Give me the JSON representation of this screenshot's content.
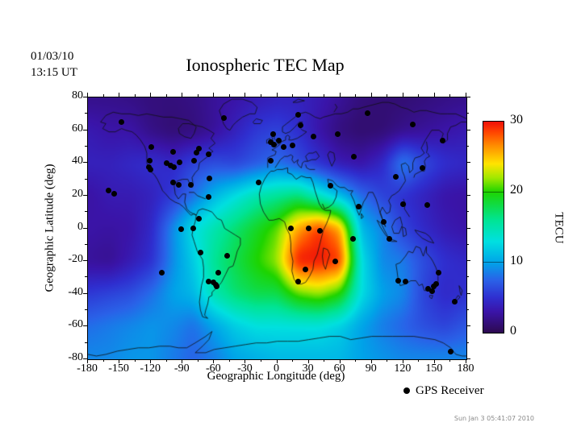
{
  "header": {
    "date_line1": "01/03/10",
    "date_line2": "13:15 UT",
    "title": "Ionospheric TEC Map"
  },
  "axes": {
    "x_label": "Geographic Longitude (deg)",
    "y_label": "Geographic Latitude (deg)",
    "x_ticks": [
      -180,
      -150,
      -120,
      -90,
      -60,
      -30,
      0,
      30,
      60,
      90,
      120,
      150,
      180
    ],
    "y_ticks": [
      80,
      60,
      40,
      20,
      0,
      -20,
      -40,
      -60,
      -80
    ]
  },
  "colorbar": {
    "label": "TECU",
    "ticks": [
      30,
      20,
      10,
      0
    ],
    "value_range": [
      0,
      30
    ],
    "stops": [
      {
        "v": 0,
        "c": "#2d0a50"
      },
      {
        "v": 3,
        "c": "#3a14a8"
      },
      {
        "v": 5,
        "c": "#2f2fd0"
      },
      {
        "v": 7.5,
        "c": "#2a62e8"
      },
      {
        "v": 10,
        "c": "#00a4e8"
      },
      {
        "v": 13,
        "c": "#00e0e0"
      },
      {
        "v": 16,
        "c": "#00e494"
      },
      {
        "v": 20,
        "c": "#1ed400"
      },
      {
        "v": 22,
        "c": "#a0e800"
      },
      {
        "v": 24,
        "c": "#ffe400"
      },
      {
        "v": 26.5,
        "c": "#ff9000"
      },
      {
        "v": 28.5,
        "c": "#ff4400"
      },
      {
        "v": 30,
        "c": "#ef1109"
      }
    ]
  },
  "legend": {
    "label": "GPS Receiver"
  },
  "footer": {
    "timestamp": "Sun Jan 3 05:41:07 2010"
  },
  "chart_data": {
    "type": "heatmap",
    "title": "Ionospheric TEC Map",
    "xlabel": "Geographic Longitude (deg)",
    "ylabel": "Geographic Latitude (deg)",
    "xlim": [
      -180,
      180
    ],
    "ylim": [
      -80,
      80
    ],
    "units": "TECU",
    "value_range": [
      0,
      30
    ],
    "grid_lons": [
      -180,
      -160,
      -140,
      -120,
      -100,
      -80,
      -60,
      -40,
      -20,
      0,
      20,
      40,
      60,
      80,
      100,
      120,
      140,
      160,
      180
    ],
    "grid_lats": [
      80,
      60,
      40,
      20,
      0,
      -20,
      -40,
      -60,
      -80
    ],
    "tec_values": [
      [
        2,
        2,
        1.8,
        1.5,
        1.5,
        1.8,
        2.5,
        3,
        3.5,
        4,
        4,
        3.5,
        2.5,
        1.5,
        1.2,
        1.2,
        1.5,
        1.8,
        2
      ],
      [
        3.5,
        3,
        3,
        1.8,
        1.2,
        1.5,
        2.5,
        4,
        5.5,
        6,
        5,
        3,
        1.5,
        1,
        1.2,
        2,
        2.5,
        3,
        3.5
      ],
      [
        4,
        4,
        4.5,
        5,
        4.5,
        6,
        6.5,
        6,
        7,
        8,
        6.5,
        5,
        3.5,
        3,
        4.5,
        9,
        6.5,
        5,
        4.5
      ],
      [
        2.8,
        3.5,
        3.5,
        4,
        5.5,
        8,
        11,
        13,
        15,
        16,
        17,
        14,
        11,
        8,
        6,
        5,
        4,
        3,
        2.8
      ],
      [
        3,
        2.8,
        3,
        4.5,
        9,
        13,
        15,
        17,
        19,
        21,
        26,
        29,
        26,
        11,
        9,
        6,
        4.5,
        3.5,
        3
      ],
      [
        2.5,
        2.2,
        3.5,
        5,
        9,
        12,
        16,
        18,
        20,
        22,
        30,
        30,
        29,
        13,
        9,
        8.5,
        6.5,
        5,
        4.5
      ],
      [
        5.5,
        6,
        6.5,
        8,
        10,
        11,
        15,
        17,
        18,
        18,
        21,
        22,
        20,
        13,
        10,
        9,
        6,
        4.5,
        5
      ],
      [
        8,
        8.5,
        9,
        9.5,
        9,
        8,
        10,
        12,
        13,
        13,
        13,
        13,
        12,
        10,
        8.5,
        7.5,
        6.5,
        6,
        7
      ],
      [
        9,
        9,
        9.5,
        9.5,
        8.5,
        7.5,
        8.5,
        10,
        10.5,
        11,
        11,
        11,
        11,
        10,
        9.5,
        9,
        9,
        9,
        9
      ]
    ],
    "gps_receivers": [
      [
        -147.8,
        65.2
      ],
      [
        -50.9,
        67.5
      ],
      [
        -119.5,
        49.6
      ],
      [
        -99.4,
        47
      ],
      [
        -77.1,
        46.5
      ],
      [
        -74.8,
        48.6
      ],
      [
        -65.6,
        45.5
      ],
      [
        -121,
        41.5
      ],
      [
        -105.3,
        40
      ],
      [
        -92.5,
        40.6
      ],
      [
        -78.7,
        41.6
      ],
      [
        -101.7,
        38.2
      ],
      [
        -97.9,
        37.2
      ],
      [
        -122.3,
        37.4
      ],
      [
        -120.2,
        35.7
      ],
      [
        -99.4,
        28.3
      ],
      [
        -94,
        26.8
      ],
      [
        -82.5,
        26.8
      ],
      [
        -64.8,
        30.5
      ],
      [
        -65.6,
        19.4
      ],
      [
        -160.8,
        22.9
      ],
      [
        -154.7,
        21.4
      ],
      [
        -17.3,
        28.3
      ],
      [
        -91.7,
        -0.3
      ],
      [
        -79.9,
        -0.2
      ],
      [
        -74.8,
        6.1
      ],
      [
        -72.6,
        -15
      ],
      [
        -47.9,
        -16.5
      ],
      [
        -109.4,
        -26.9
      ],
      [
        -55.8,
        -27.3
      ],
      [
        -64.9,
        -32.6
      ],
      [
        -60.5,
        -33.2
      ],
      [
        -58.4,
        -34.6
      ],
      [
        -57.2,
        -35.6
      ],
      [
        19.6,
        69.2
      ],
      [
        22.6,
        62.8
      ],
      [
        -3.5,
        57.8
      ],
      [
        1.9,
        53.9
      ],
      [
        -6.5,
        52.9
      ],
      [
        -2.7,
        51.4
      ],
      [
        5.8,
        49.5
      ],
      [
        14.9,
        50.5
      ],
      [
        -6.5,
        41.6
      ],
      [
        34.9,
        56.2
      ],
      [
        57.2,
        57.4
      ],
      [
        86.3,
        70.6
      ],
      [
        128.6,
        63.3
      ],
      [
        157,
        53.9
      ],
      [
        73.3,
        44
      ],
      [
        50.6,
        26.2
      ],
      [
        77.6,
        13.5
      ],
      [
        138.5,
        36.7
      ],
      [
        113.2,
        31.7
      ],
      [
        13.4,
        0
      ],
      [
        30.3,
        0.2
      ],
      [
        40.3,
        -1.7
      ],
      [
        27.2,
        -24.9
      ],
      [
        19.6,
        -32.3
      ],
      [
        55.6,
        -20.2
      ],
      [
        72.5,
        -6.2
      ],
      [
        101.7,
        3.7
      ],
      [
        106.8,
        -6.2
      ],
      [
        119.8,
        14.8
      ],
      [
        142.4,
        14.5
      ],
      [
        114.9,
        -31.8
      ],
      [
        122.4,
        -32.3
      ],
      [
        143.9,
        -36.7
      ],
      [
        147.7,
        -38.2
      ],
      [
        149.2,
        -35.4
      ],
      [
        151.5,
        -34.2
      ],
      [
        153.2,
        -27.3
      ],
      [
        168.5,
        -44.6
      ],
      [
        165.4,
        -75.1
      ]
    ]
  }
}
